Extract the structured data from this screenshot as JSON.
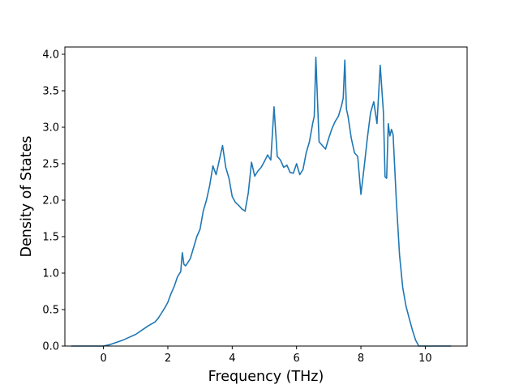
{
  "chart_data": {
    "type": "line",
    "title": "",
    "xlabel": "Frequency (THz)",
    "ylabel": "Density of States",
    "xlim": [
      -1.2,
      11.3
    ],
    "ylim": [
      0,
      4.1
    ],
    "x_ticks": [
      0,
      2,
      4,
      6,
      8,
      10
    ],
    "y_ticks": [
      0.0,
      0.5,
      1.0,
      1.5,
      2.0,
      2.5,
      3.0,
      3.5,
      4.0
    ],
    "x_tick_labels": [
      "0",
      "2",
      "4",
      "6",
      "8",
      "10"
    ],
    "y_tick_labels": [
      "0.0",
      "0.5",
      "1.0",
      "1.5",
      "2.0",
      "2.5",
      "3.0",
      "3.5",
      "4.0"
    ],
    "grid": false,
    "series": [
      {
        "color": "#1f77b4",
        "x": [
          -1.0,
          -0.5,
          0.0,
          0.2,
          0.4,
          0.6,
          0.8,
          1.0,
          1.2,
          1.4,
          1.6,
          1.7,
          1.8,
          1.9,
          2.0,
          2.1,
          2.2,
          2.3,
          2.4,
          2.45,
          2.5,
          2.55,
          2.6,
          2.7,
          2.8,
          2.9,
          3.0,
          3.1,
          3.2,
          3.3,
          3.4,
          3.5,
          3.6,
          3.7,
          3.8,
          3.9,
          4.0,
          4.1,
          4.2,
          4.3,
          4.4,
          4.5,
          4.6,
          4.7,
          4.8,
          4.9,
          5.0,
          5.1,
          5.2,
          5.3,
          5.4,
          5.5,
          5.6,
          5.7,
          5.8,
          5.9,
          6.0,
          6.1,
          6.2,
          6.3,
          6.4,
          6.5,
          6.55,
          6.6,
          6.7,
          6.8,
          6.9,
          7.0,
          7.1,
          7.2,
          7.3,
          7.4,
          7.45,
          7.5,
          7.55,
          7.6,
          7.7,
          7.8,
          7.9,
          8.0,
          8.1,
          8.2,
          8.3,
          8.4,
          8.5,
          8.6,
          8.7,
          8.75,
          8.8,
          8.85,
          8.9,
          8.95,
          9.0,
          9.1,
          9.2,
          9.3,
          9.4,
          9.5,
          9.6,
          9.7,
          9.8,
          10.0,
          10.5,
          10.8
        ],
        "y": [
          0.0,
          0.0,
          0.0,
          0.02,
          0.05,
          0.08,
          0.12,
          0.16,
          0.22,
          0.28,
          0.33,
          0.38,
          0.45,
          0.52,
          0.6,
          0.72,
          0.82,
          0.95,
          1.02,
          1.28,
          1.12,
          1.1,
          1.13,
          1.2,
          1.35,
          1.5,
          1.6,
          1.85,
          2.0,
          2.2,
          2.47,
          2.35,
          2.55,
          2.75,
          2.45,
          2.3,
          2.05,
          1.97,
          1.93,
          1.88,
          1.85,
          2.1,
          2.52,
          2.33,
          2.4,
          2.45,
          2.53,
          2.62,
          2.55,
          3.28,
          2.6,
          2.55,
          2.45,
          2.48,
          2.38,
          2.37,
          2.5,
          2.35,
          2.42,
          2.65,
          2.8,
          3.05,
          3.15,
          3.96,
          2.8,
          2.75,
          2.7,
          2.85,
          2.98,
          3.08,
          3.15,
          3.3,
          3.4,
          3.92,
          3.25,
          3.15,
          2.85,
          2.65,
          2.6,
          2.08,
          2.45,
          2.85,
          3.2,
          3.35,
          3.05,
          3.85,
          3.2,
          2.32,
          2.3,
          3.05,
          2.88,
          2.97,
          2.9,
          2.0,
          1.25,
          0.8,
          0.55,
          0.38,
          0.22,
          0.08,
          0.0,
          0.0,
          0.0,
          0.0
        ]
      }
    ]
  }
}
